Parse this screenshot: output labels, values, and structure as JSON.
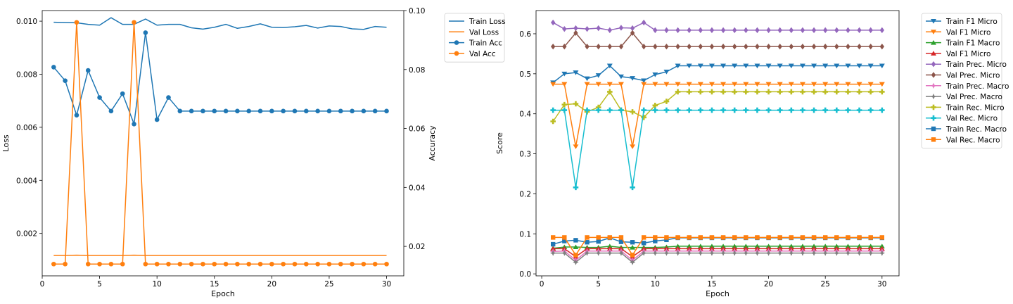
{
  "chart_data": [
    {
      "type": "line",
      "xlabel": "Epoch",
      "ylabel": "Loss",
      "y2label": "Accuracy",
      "xlim": [
        0.0,
        31.5
      ],
      "ylim": [
        0.0004,
        0.0104
      ],
      "y2lim": [
        0.01,
        0.1
      ],
      "xticks": [
        0,
        5,
        10,
        15,
        20,
        25,
        30
      ],
      "yticks": [
        0.002,
        0.004,
        0.006,
        0.008,
        0.01
      ],
      "y2ticks": [
        0.02,
        0.04,
        0.06,
        0.08,
        0.1
      ],
      "legend_position": "outside-right",
      "x": [
        1,
        2,
        3,
        4,
        5,
        6,
        7,
        8,
        9,
        10,
        11,
        12,
        13,
        14,
        15,
        16,
        17,
        18,
        19,
        20,
        21,
        22,
        23,
        24,
        25,
        26,
        27,
        28,
        29,
        30
      ],
      "series": [
        {
          "name": "Train Loss",
          "axis": "left",
          "color": "#1f77b4",
          "marker": "none",
          "values": [
            0.00996,
            0.00995,
            0.00994,
            0.00988,
            0.00985,
            0.01013,
            0.00988,
            0.00988,
            0.01008,
            0.00985,
            0.00988,
            0.00988,
            0.00975,
            0.0097,
            0.00977,
            0.00988,
            0.00973,
            0.0098,
            0.0099,
            0.00977,
            0.00976,
            0.00979,
            0.00984,
            0.00974,
            0.00982,
            0.0098,
            0.00971,
            0.00969,
            0.0098,
            0.00977
          ]
        },
        {
          "name": "Val Loss",
          "axis": "left",
          "color": "#ff7f0e",
          "marker": "none",
          "values": [
            0.00117,
            0.00117,
            0.00118,
            0.00117,
            0.00117,
            0.00117,
            0.00117,
            0.00118,
            0.00117,
            0.00117,
            0.00117,
            0.00117,
            0.00117,
            0.00117,
            0.00117,
            0.00117,
            0.00117,
            0.00117,
            0.00117,
            0.00117,
            0.00117,
            0.00117,
            0.00117,
            0.00117,
            0.00117,
            0.00117,
            0.00117,
            0.00117,
            0.00117,
            0.00117
          ]
        },
        {
          "name": "Train Acc",
          "axis": "right",
          "color": "#1f77b4",
          "marker": "circle",
          "values": [
            0.0808,
            0.0762,
            0.0645,
            0.0797,
            0.0705,
            0.0659,
            0.0718,
            0.0615,
            0.0925,
            0.063,
            0.0705,
            0.0659,
            0.0659,
            0.0659,
            0.0659,
            0.0659,
            0.0659,
            0.0659,
            0.0659,
            0.0659,
            0.0659,
            0.0659,
            0.0659,
            0.0659,
            0.0659,
            0.0659,
            0.0659,
            0.0659,
            0.0659,
            0.0659
          ]
        },
        {
          "name": "Val Acc",
          "axis": "right",
          "color": "#ff7f0e",
          "marker": "circle",
          "values": [
            0.014,
            0.014,
            0.096,
            0.014,
            0.014,
            0.014,
            0.014,
            0.096,
            0.014,
            0.014,
            0.014,
            0.014,
            0.014,
            0.014,
            0.014,
            0.014,
            0.014,
            0.014,
            0.014,
            0.014,
            0.014,
            0.014,
            0.014,
            0.014,
            0.014,
            0.014,
            0.014,
            0.014,
            0.014,
            0.014
          ]
        }
      ]
    },
    {
      "type": "line",
      "xlabel": "Epoch",
      "ylabel": "Score",
      "xlim": [
        -0.5,
        31.5
      ],
      "ylim": [
        -0.005,
        0.658
      ],
      "xticks": [
        0,
        5,
        10,
        15,
        20,
        25,
        30
      ],
      "yticks": [
        0.0,
        0.1,
        0.2,
        0.3,
        0.4,
        0.5,
        0.6
      ],
      "ytick_labels": [
        "0.0",
        "0.1",
        "0.2",
        "0.3",
        "0.4",
        "0.5",
        "0.6"
      ],
      "legend_position": "outside-right",
      "x": [
        1,
        2,
        3,
        4,
        5,
        6,
        7,
        8,
        9,
        10,
        11,
        12,
        13,
        14,
        15,
        16,
        17,
        18,
        19,
        20,
        21,
        22,
        23,
        24,
        25,
        26,
        27,
        28,
        29,
        30
      ],
      "series": [
        {
          "name": "Train F1 Micro",
          "color": "#1f77b4",
          "marker": "tri-down",
          "values": [
            0.478,
            0.5,
            0.503,
            0.488,
            0.496,
            0.52,
            0.493,
            0.489,
            0.483,
            0.498,
            0.505,
            0.52,
            0.52,
            0.52,
            0.52,
            0.52,
            0.52,
            0.52,
            0.52,
            0.52,
            0.52,
            0.52,
            0.52,
            0.52,
            0.52,
            0.52,
            0.52,
            0.52,
            0.52,
            0.52
          ]
        },
        {
          "name": "Val F1 Micro",
          "color": "#ff7f0e",
          "marker": "tri-down",
          "values": [
            0.474,
            0.474,
            0.318,
            0.474,
            0.474,
            0.474,
            0.474,
            0.318,
            0.474,
            0.474,
            0.474,
            0.474,
            0.474,
            0.474,
            0.474,
            0.474,
            0.474,
            0.474,
            0.474,
            0.474,
            0.474,
            0.474,
            0.474,
            0.474,
            0.474,
            0.474,
            0.474,
            0.474,
            0.474,
            0.474
          ]
        },
        {
          "name": "Train F1 Macro",
          "color": "#2ca02c",
          "marker": "tri-up",
          "values": [
            0.064,
            0.067,
            0.067,
            0.066,
            0.066,
            0.069,
            0.066,
            0.066,
            0.066,
            0.066,
            0.067,
            0.069,
            0.069,
            0.069,
            0.069,
            0.069,
            0.069,
            0.069,
            0.069,
            0.069,
            0.069,
            0.069,
            0.069,
            0.069,
            0.069,
            0.069,
            0.069,
            0.069,
            0.069,
            0.069
          ]
        },
        {
          "name": "Val F1 Micro",
          "color": "#d62728",
          "marker": "tri-up",
          "values": [
            0.063,
            0.063,
            0.043,
            0.063,
            0.063,
            0.063,
            0.063,
            0.043,
            0.063,
            0.063,
            0.063,
            0.063,
            0.063,
            0.063,
            0.063,
            0.063,
            0.063,
            0.063,
            0.063,
            0.063,
            0.063,
            0.063,
            0.063,
            0.063,
            0.063,
            0.063,
            0.063,
            0.063,
            0.063,
            0.063
          ]
        },
        {
          "name": "Train Prec. Micro",
          "color": "#9467bd",
          "marker": "diamond",
          "values": [
            0.628,
            0.612,
            0.614,
            0.612,
            0.614,
            0.609,
            0.615,
            0.614,
            0.628,
            0.609,
            0.609,
            0.609,
            0.609,
            0.609,
            0.609,
            0.609,
            0.609,
            0.609,
            0.609,
            0.609,
            0.609,
            0.609,
            0.609,
            0.609,
            0.609,
            0.609,
            0.609,
            0.609,
            0.609,
            0.609
          ]
        },
        {
          "name": "Val Prec. Micro",
          "color": "#8c564b",
          "marker": "diamond",
          "values": [
            0.568,
            0.568,
            0.602,
            0.568,
            0.568,
            0.568,
            0.568,
            0.602,
            0.568,
            0.568,
            0.568,
            0.568,
            0.568,
            0.568,
            0.568,
            0.568,
            0.568,
            0.568,
            0.568,
            0.568,
            0.568,
            0.568,
            0.568,
            0.568,
            0.568,
            0.568,
            0.568,
            0.568,
            0.568,
            0.568
          ]
        },
        {
          "name": "Train Prec. Macro",
          "color": "#e377c2",
          "marker": "star",
          "values": [
            0.056,
            0.057,
            0.034,
            0.057,
            0.057,
            0.057,
            0.057,
            0.034,
            0.057,
            0.057,
            0.057,
            0.057,
            0.057,
            0.057,
            0.057,
            0.057,
            0.057,
            0.057,
            0.057,
            0.057,
            0.057,
            0.057,
            0.057,
            0.057,
            0.057,
            0.057,
            0.057,
            0.057,
            0.057,
            0.057
          ]
        },
        {
          "name": "Val Prec. Macro",
          "color": "#7f7f7f",
          "marker": "star",
          "values": [
            0.052,
            0.052,
            0.029,
            0.052,
            0.052,
            0.052,
            0.052,
            0.029,
            0.052,
            0.052,
            0.052,
            0.052,
            0.052,
            0.052,
            0.052,
            0.052,
            0.052,
            0.052,
            0.052,
            0.052,
            0.052,
            0.052,
            0.052,
            0.052,
            0.052,
            0.052,
            0.052,
            0.052,
            0.052,
            0.052
          ]
        },
        {
          "name": "Train Rec. Micro",
          "color": "#bcbd22",
          "marker": "plus",
          "values": [
            0.381,
            0.423,
            0.425,
            0.405,
            0.416,
            0.455,
            0.409,
            0.405,
            0.391,
            0.421,
            0.431,
            0.455,
            0.455,
            0.455,
            0.455,
            0.455,
            0.455,
            0.455,
            0.455,
            0.455,
            0.455,
            0.455,
            0.455,
            0.455,
            0.455,
            0.455,
            0.455,
            0.455,
            0.455,
            0.455
          ]
        },
        {
          "name": "Val Rec. Micro",
          "color": "#17becf",
          "marker": "plus",
          "values": [
            0.409,
            0.409,
            0.216,
            0.409,
            0.409,
            0.409,
            0.409,
            0.216,
            0.409,
            0.409,
            0.409,
            0.409,
            0.409,
            0.409,
            0.409,
            0.409,
            0.409,
            0.409,
            0.409,
            0.409,
            0.409,
            0.409,
            0.409,
            0.409,
            0.409,
            0.409,
            0.409,
            0.409,
            0.409,
            0.409
          ]
        },
        {
          "name": "Train Rec. Macro",
          "color": "#1f77b4",
          "marker": "square",
          "values": [
            0.074,
            0.082,
            0.084,
            0.079,
            0.081,
            0.09,
            0.08,
            0.079,
            0.077,
            0.082,
            0.085,
            0.09,
            0.09,
            0.09,
            0.09,
            0.09,
            0.09,
            0.09,
            0.09,
            0.09,
            0.09,
            0.09,
            0.09,
            0.09,
            0.09,
            0.09,
            0.09,
            0.09,
            0.09,
            0.09
          ]
        },
        {
          "name": "Val Rec. Macro",
          "color": "#ff7f0e",
          "marker": "square",
          "values": [
            0.091,
            0.091,
            0.047,
            0.091,
            0.091,
            0.091,
            0.091,
            0.047,
            0.091,
            0.091,
            0.091,
            0.091,
            0.091,
            0.091,
            0.091,
            0.091,
            0.091,
            0.091,
            0.091,
            0.091,
            0.091,
            0.091,
            0.091,
            0.091,
            0.091,
            0.091,
            0.091,
            0.091,
            0.091,
            0.091
          ]
        }
      ]
    }
  ]
}
